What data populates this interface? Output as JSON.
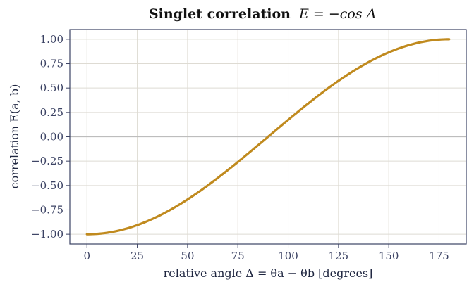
{
  "chart_data": {
    "type": "line",
    "title": "Singlet correlation",
    "title_formula": "E = −cos Δ",
    "xlabel": "relative angle  Δ = θa − θb  [degrees]",
    "ylabel": "correlation  E(a, b)",
    "xlim": [
      -8.5,
      188.5
    ],
    "ylim": [
      -1.1,
      1.1
    ],
    "x_ticks": [
      0,
      25,
      50,
      75,
      100,
      125,
      150,
      175
    ],
    "y_ticks": [
      -1.0,
      -0.75,
      -0.5,
      -0.25,
      0.0,
      0.25,
      0.5,
      0.75,
      1.0
    ],
    "x_tick_labels": [
      "0",
      "25",
      "50",
      "75",
      "100",
      "125",
      "150",
      "175"
    ],
    "y_tick_labels": [
      "−1.00",
      "−0.75",
      "−0.50",
      "−0.25",
      "0.00",
      "0.25",
      "0.50",
      "0.75",
      "1.00"
    ],
    "grid": true,
    "zero_line": true,
    "series": [
      {
        "function": "-cos(x deg)",
        "color": "#c08a1e",
        "x": [
          0,
          10,
          20,
          30,
          40,
          50,
          60,
          70,
          80,
          90,
          100,
          110,
          120,
          130,
          140,
          150,
          160,
          170,
          180
        ],
        "y": [
          -1.0,
          -0.985,
          -0.94,
          -0.866,
          -0.766,
          -0.643,
          -0.5,
          -0.342,
          -0.174,
          0.0,
          0.174,
          0.342,
          0.5,
          0.643,
          0.766,
          0.866,
          0.94,
          0.985,
          1.0
        ]
      }
    ]
  }
}
